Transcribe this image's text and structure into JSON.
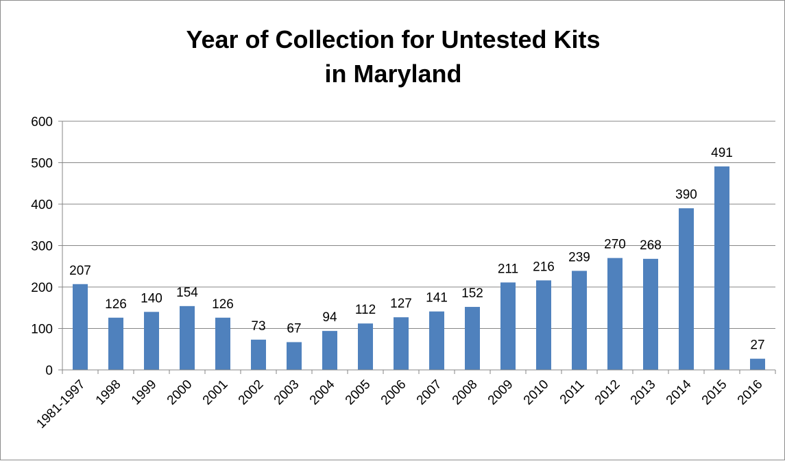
{
  "chart_data": {
    "type": "bar",
    "title_lines": [
      "Year of Collection for Untested Kits",
      "in Maryland"
    ],
    "categories": [
      "1981-1997",
      "1998",
      "1999",
      "2000",
      "2001",
      "2002",
      "2003",
      "2004",
      "2005",
      "2006",
      "2007",
      "2008",
      "2009",
      "2010",
      "2011",
      "2012",
      "2013",
      "2014",
      "2015",
      "2016"
    ],
    "values": [
      207,
      126,
      140,
      154,
      126,
      73,
      67,
      94,
      112,
      127,
      141,
      152,
      211,
      216,
      239,
      270,
      268,
      390,
      491,
      27
    ],
    "ylim": [
      0,
      600
    ],
    "yticks": [
      0,
      100,
      200,
      300,
      400,
      500,
      600
    ],
    "grid": true,
    "legend": "none",
    "bar_color": "#4f81bd",
    "grid_color": "#868686",
    "axis_color": "#868686"
  }
}
